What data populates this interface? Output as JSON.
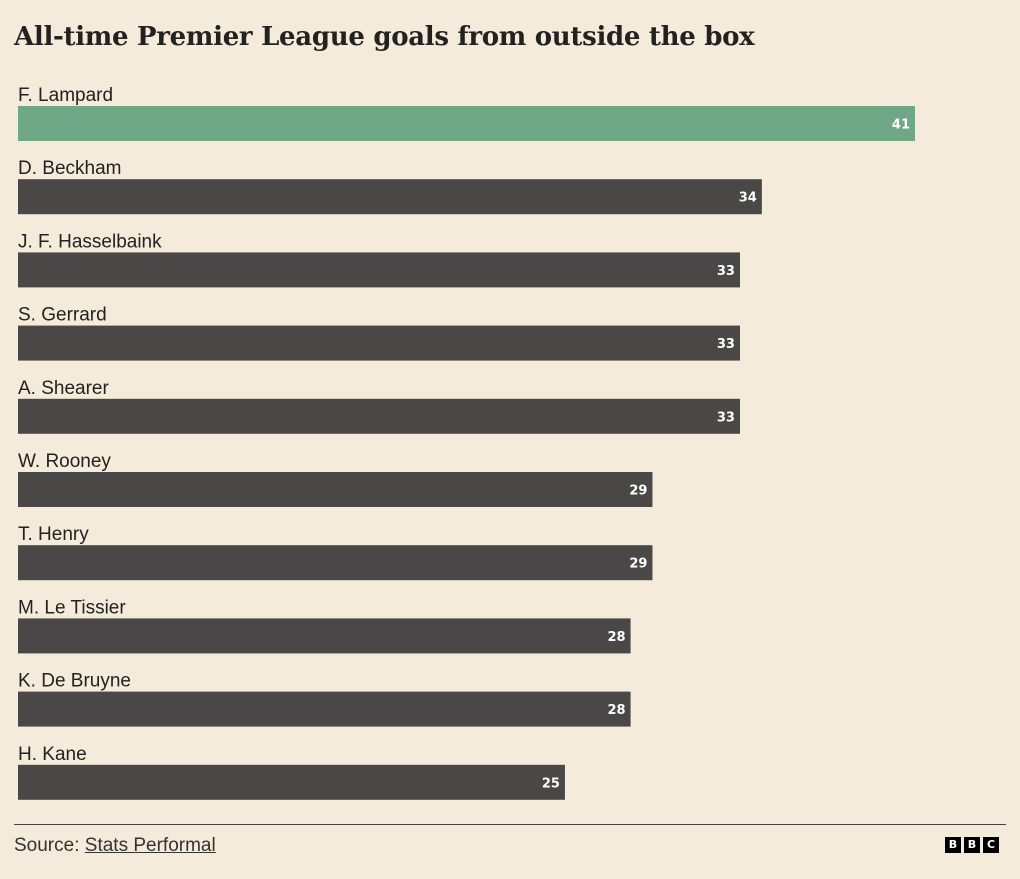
{
  "chart_data": {
    "type": "bar",
    "orientation": "horizontal",
    "title": "All-time Premier League goals from outside the box",
    "categories": [
      "F. Lampard",
      "D. Beckham",
      "J. F. Hasselbaink",
      "S. Gerrard",
      "A. Shearer",
      "W. Rooney",
      "T. Henry",
      "M. Le Tissier",
      "K. De Bruyne",
      "H. Kane"
    ],
    "values": [
      41,
      34,
      33,
      33,
      33,
      29,
      29,
      28,
      28,
      25
    ],
    "data_labels": true,
    "grid": false,
    "legend": "none",
    "colors": {
      "highlight": "#6fa886",
      "default": "#4a4846",
      "value_text": "#ffffff",
      "background": "#f5ebda"
    },
    "highlight_index": 0
  },
  "footer": {
    "source_prefix": "Source:",
    "source_link": "Stats Performal"
  },
  "logo": {
    "letters": [
      "B",
      "B",
      "C"
    ]
  }
}
